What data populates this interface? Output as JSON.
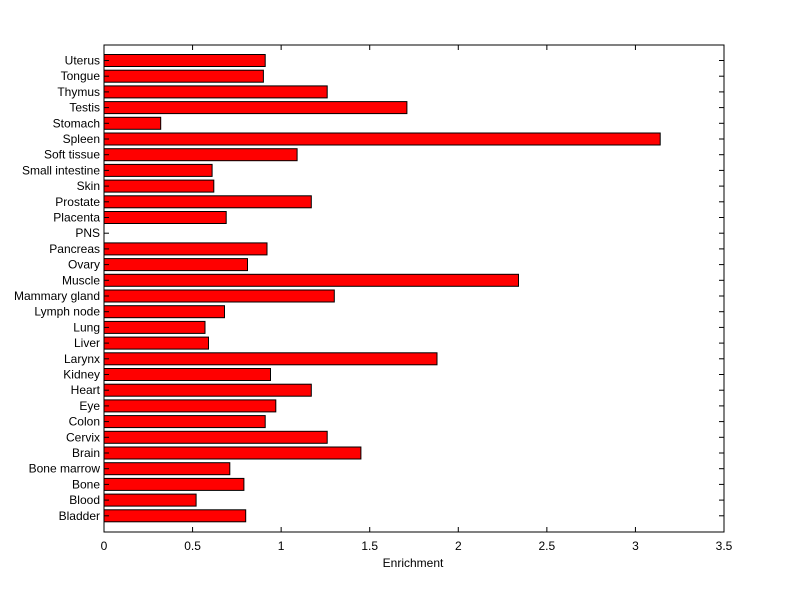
{
  "chart_data": {
    "type": "bar",
    "orientation": "horizontal",
    "xlabel": "Enrichment",
    "ylabel": "",
    "title": "",
    "xlim": [
      0,
      3.5
    ],
    "xticks": [
      "0",
      "0.5",
      "1",
      "1.5",
      "2",
      "2.5",
      "3",
      "3.5"
    ],
    "categories": [
      "Uterus",
      "Tongue",
      "Thymus",
      "Testis",
      "Stomach",
      "Spleen",
      "Soft tissue",
      "Small intestine",
      "Skin",
      "Prostate",
      "Placenta",
      "PNS",
      "Pancreas",
      "Ovary",
      "Muscle",
      "Mammary gland",
      "Lymph node",
      "Lung",
      "Liver",
      "Larynx",
      "Kidney",
      "Heart",
      "Eye",
      "Colon",
      "Cervix",
      "Brain",
      "Bone marrow",
      "Bone",
      "Blood",
      "Bladder"
    ],
    "values": [
      0.91,
      0.9,
      1.26,
      1.71,
      0.32,
      3.14,
      1.09,
      0.61,
      0.62,
      1.17,
      0.69,
      0,
      0.92,
      0.81,
      2.34,
      1.3,
      0.68,
      0.57,
      0.59,
      1.88,
      0.94,
      1.17,
      0.97,
      0.91,
      1.26,
      1.45,
      0.71,
      0.79,
      0.52,
      0.8
    ],
    "bar_color": "#ff0000",
    "bar_edge_color": "#000000",
    "grid": false
  }
}
